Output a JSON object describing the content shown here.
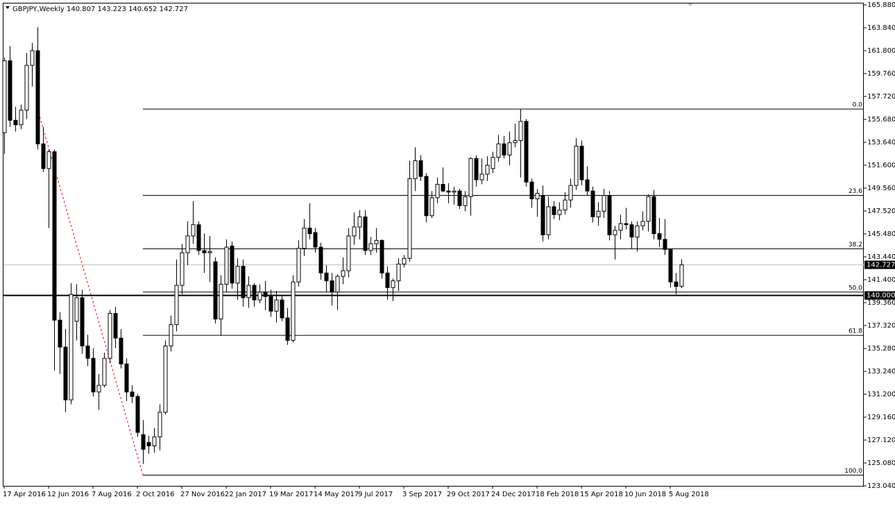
{
  "chart_data": {
    "type": "candlestick",
    "symbol": "GBPJPY,Weekly",
    "categories": [
      "17 Apr 2016",
      null,
      null,
      null,
      null,
      null,
      null,
      null,
      "12 Jun 2016",
      null,
      null,
      null,
      null,
      null,
      null,
      null,
      "7 Aug 2016",
      null,
      null,
      null,
      null,
      null,
      null,
      null,
      "2 Oct 2016",
      null,
      null,
      null,
      null,
      null,
      null,
      null,
      "27 Nov 2016",
      null,
      null,
      null,
      null,
      null,
      null,
      null,
      "22 Jan 2017",
      null,
      null,
      null,
      null,
      null,
      null,
      null,
      "19 Mar 2017",
      null,
      null,
      null,
      null,
      null,
      null,
      null,
      "14 May 2017",
      null,
      null,
      null,
      null,
      null,
      null,
      null,
      "9 Jul 2017",
      null,
      null,
      null,
      null,
      null,
      null,
      null,
      "3 Sep 2017",
      null,
      null,
      null,
      null,
      null,
      null,
      null,
      "29 Oct 2017",
      null,
      null,
      null,
      null,
      null,
      null,
      null,
      "24 Dec 2017",
      null,
      null,
      null,
      null,
      null,
      null,
      null,
      "18 Feb 2018",
      null,
      null,
      null,
      null,
      null,
      null,
      null,
      "15 Apr 2018",
      null,
      null,
      null,
      null,
      null,
      null,
      null,
      "10 Jun 2018",
      null,
      null,
      null,
      null,
      null,
      null,
      null,
      "5 Aug 2018",
      null,
      null
    ],
    "open": [
      154.5,
      160.9,
      155.6,
      155.2,
      156.5,
      160.5,
      161.8,
      153.5,
      151.3,
      152.8,
      137.8,
      135.4,
      130.7,
      137.7,
      139.8,
      135.5,
      134.4,
      131.4,
      132.0,
      134.4,
      138.4,
      136.2,
      133.9,
      131.4,
      131.0,
      127.6,
      126.9,
      126.6,
      127.4,
      129.6,
      135.5,
      137.4,
      140.9,
      143.8,
      145.3,
      146.3,
      144.0,
      143.8,
      143.0,
      137.9,
      141.0,
      144.4,
      141.1,
      142.6,
      139.8,
      140.9,
      139.6,
      140.3,
      139.9,
      138.6,
      139.6,
      138.0,
      136.0,
      141.2,
      144.2,
      146.0,
      145.6,
      144.3,
      142.0,
      141.3,
      140.3,
      141.7,
      142.2,
      145.3,
      146.1,
      147.0,
      144.0,
      144.6,
      144.9,
      142.0,
      140.7,
      141.3,
      142.8,
      143.3,
      150.4,
      152.0,
      150.6,
      147.1,
      148.7,
      149.9,
      149.3,
      149.2,
      149.3,
      148.0,
      148.8,
      152.2,
      150.3,
      150.8,
      151.3,
      152.3,
      153.5,
      152.5,
      153.6,
      153.8,
      155.5,
      150.1,
      148.6,
      148.9,
      145.4,
      147.9,
      147.2,
      147.6,
      148.5,
      149.8,
      153.3,
      150.3,
      149.3,
      147.0,
      147.5,
      148.9,
      145.4,
      145.8,
      146.4,
      146.3,
      145.2,
      146.2,
      146.6,
      148.8,
      145.5,
      145.0,
      144.1,
      141.2,
      140.807
    ],
    "high": [
      161.2,
      162.2,
      156.8,
      157.0,
      161.6,
      162.5,
      163.9,
      155.0,
      153.0,
      153.0,
      138.5,
      137.0,
      141.1,
      141.0,
      140.5,
      136.5,
      135.3,
      133.0,
      134.9,
      138.7,
      139.0,
      137.0,
      134.4,
      132.0,
      131.2,
      128.9,
      127.5,
      128.2,
      130.3,
      136.0,
      138.2,
      143.2,
      144.6,
      146.6,
      148.4,
      146.6,
      145.5,
      145.3,
      143.4,
      141.8,
      145.0,
      144.8,
      143.3,
      143.2,
      141.7,
      141.1,
      141.0,
      141.3,
      140.5,
      140.4,
      140.0,
      138.9,
      141.8,
      144.9,
      146.8,
      148.2,
      146.0,
      144.7,
      142.7,
      142.0,
      141.9,
      143.4,
      146.0,
      147.4,
      147.6,
      147.6,
      145.2,
      146.0,
      145.0,
      142.6,
      141.5,
      143.3,
      143.6,
      152.0,
      153.2,
      152.5,
      150.9,
      149.3,
      150.5,
      151.4,
      150.0,
      149.7,
      149.5,
      149.3,
      152.3,
      152.5,
      152.2,
      152.4,
      152.8,
      154.3,
      154.2,
      154.6,
      155.3,
      156.6,
      155.7,
      150.4,
      149.5,
      149.8,
      148.8,
      148.4,
      148.3,
      149.2,
      150.4,
      154.0,
      153.8,
      151.5,
      149.7,
      148.3,
      149.5,
      149.3,
      146.2,
      147.2,
      147.8,
      146.6,
      146.6,
      147.5,
      149.0,
      149.4,
      146.9,
      146.8,
      144.2,
      142.0,
      143.223
    ],
    "low": [
      152.6,
      155.0,
      154.6,
      154.8,
      155.7,
      158.6,
      153.0,
      151.0,
      146.0,
      133.3,
      133.0,
      129.6,
      130.3,
      136.0,
      134.8,
      133.7,
      131.0,
      129.8,
      131.8,
      134.0,
      135.3,
      133.5,
      130.6,
      130.4,
      127.4,
      125.0,
      125.9,
      126.0,
      126.2,
      129.4,
      135.0,
      136.8,
      140.1,
      142.7,
      144.6,
      143.6,
      142.0,
      141.2,
      137.5,
      136.4,
      140.3,
      140.6,
      139.6,
      139.0,
      138.9,
      139.0,
      139.3,
      138.7,
      138.1,
      137.6,
      137.7,
      135.6,
      135.8,
      140.8,
      143.5,
      145.0,
      143.8,
      141.4,
      140.3,
      139.1,
      138.7,
      141.0,
      141.6,
      144.5,
      145.0,
      143.6,
      143.6,
      143.8,
      141.5,
      139.6,
      139.5,
      140.4,
      142.5,
      143.0,
      149.3,
      150.2,
      146.5,
      146.9,
      148.2,
      149.2,
      148.2,
      148.1,
      147.7,
      147.5,
      147.1,
      149.7,
      149.9,
      150.2,
      150.9,
      151.9,
      152.2,
      151.6,
      153.2,
      150.5,
      149.7,
      147.8,
      147.0,
      144.8,
      145.0,
      146.8,
      146.7,
      147.2,
      147.8,
      149.4,
      149.8,
      148.9,
      146.5,
      146.2,
      146.9,
      144.9,
      143.2,
      145.0,
      145.9,
      144.2,
      143.9,
      145.8,
      145.7,
      145.0,
      144.3,
      143.6,
      140.7,
      140.1,
      140.652
    ],
    "close": [
      160.9,
      155.6,
      155.2,
      156.5,
      160.5,
      161.8,
      153.5,
      151.3,
      152.8,
      137.8,
      135.4,
      130.7,
      140.1,
      139.8,
      135.5,
      134.4,
      131.4,
      132.0,
      134.4,
      138.4,
      136.2,
      133.9,
      131.4,
      131.0,
      127.8,
      126.3,
      126.6,
      127.4,
      129.6,
      135.5,
      137.4,
      140.9,
      143.8,
      145.3,
      146.3,
      144.0,
      143.8,
      143.9,
      137.9,
      141.0,
      144.3,
      141.1,
      142.6,
      139.8,
      140.9,
      139.6,
      140.3,
      139.9,
      138.6,
      139.6,
      138.0,
      136.0,
      141.2,
      144.2,
      146.0,
      145.5,
      144.3,
      142.0,
      141.3,
      140.3,
      141.7,
      142.2,
      145.3,
      146.1,
      147.0,
      144.0,
      144.6,
      144.9,
      142.0,
      140.7,
      141.3,
      142.8,
      143.3,
      150.4,
      152.0,
      150.6,
      147.1,
      148.7,
      149.9,
      149.3,
      149.2,
      149.3,
      148.0,
      148.8,
      152.2,
      150.3,
      150.8,
      151.6,
      152.3,
      153.5,
      152.5,
      153.6,
      153.8,
      155.5,
      150.1,
      148.6,
      149.1,
      145.4,
      147.9,
      147.2,
      147.6,
      148.5,
      149.8,
      153.3,
      150.3,
      149.3,
      147.0,
      147.5,
      148.9,
      145.4,
      145.8,
      146.4,
      146.3,
      145.2,
      146.2,
      146.6,
      148.8,
      145.5,
      145.0,
      144.1,
      141.2,
      140.8,
      142.727
    ],
    "bull_color": "#ffffff",
    "bear_color": "#000000",
    "ylim": [
      123.04,
      165.88
    ],
    "yticks": [
      {
        "value": 165.88,
        "label": "165.880"
      },
      {
        "value": 163.84,
        "label": "163.840"
      },
      {
        "value": 161.8,
        "label": "161.800"
      },
      {
        "value": 159.76,
        "label": "159.760"
      },
      {
        "value": 157.72,
        "label": "157.720"
      },
      {
        "value": 155.68,
        "label": "155.680"
      },
      {
        "value": 153.64,
        "label": "153.640"
      },
      {
        "value": 151.6,
        "label": "151.600"
      },
      {
        "value": 149.56,
        "label": "149.560"
      },
      {
        "value": 147.52,
        "label": "147.520"
      },
      {
        "value": 145.48,
        "label": "145.480"
      },
      {
        "value": 143.44,
        "label": "143.440"
      },
      {
        "value": 141.4,
        "label": "141.400"
      },
      {
        "value": 139.36,
        "label": "139.360"
      },
      {
        "value": 137.32,
        "label": "137.320"
      },
      {
        "value": 135.28,
        "label": "135.280"
      },
      {
        "value": 133.24,
        "label": "133.240"
      },
      {
        "value": 131.2,
        "label": "131.200"
      },
      {
        "value": 129.16,
        "label": "129.160"
      },
      {
        "value": 127.12,
        "label": "127.120"
      },
      {
        "value": 125.08,
        "label": "125.080"
      },
      {
        "value": 123.04,
        "label": "123.040"
      }
    ],
    "hline": {
      "value": 140,
      "label": "140.000"
    },
    "fibonacci": {
      "levels": [
        {
          "label": "0.0",
          "price": 156.6
        },
        {
          "label": "23.6",
          "price": 148.91
        },
        {
          "label": "38.2",
          "price": 144.15
        },
        {
          "label": "50.0",
          "price": 140.3
        },
        {
          "label": "61.8",
          "price": 136.45
        },
        {
          "label": "100.0",
          "price": 124.0
        }
      ]
    }
  }
}
